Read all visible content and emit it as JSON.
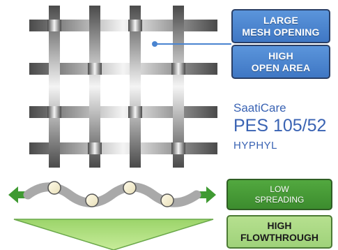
{
  "mesh_labels": {
    "large_mesh_opening": "LARGE\nMESH OPENING",
    "high_open_area": "HIGH\nOPEN AREA"
  },
  "product": {
    "brand": "SaatiCare",
    "model": "PES 105/52",
    "variant": "HYPHYL"
  },
  "flow_labels": {
    "low_spreading": "LOW\nSPREADING",
    "high_flowthrough": "HIGH\nFLOWTHROUGH"
  },
  "colors": {
    "blue_box": "#4a84d0",
    "dark_green_box": "#469a36",
    "light_green_box": "#a9d884",
    "arrow_green": "#3f9a32",
    "product_text": "#3a63b3"
  }
}
